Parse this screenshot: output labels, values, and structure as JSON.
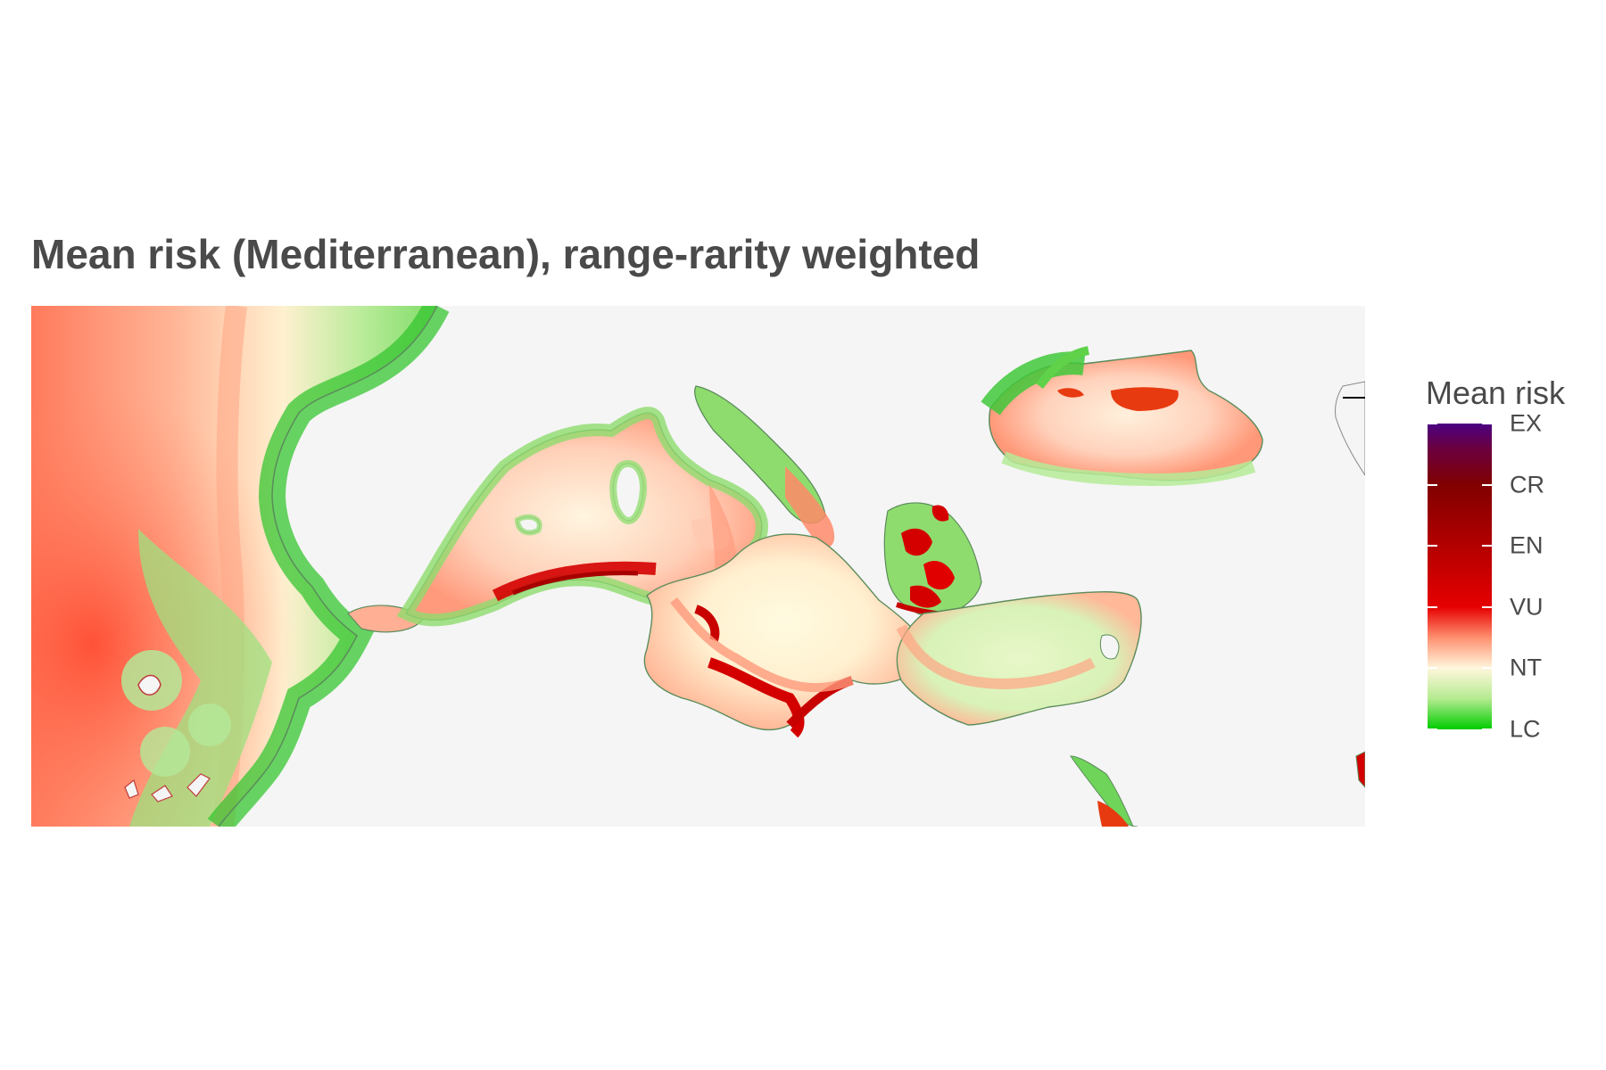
{
  "title": "Mean risk (Mediterranean), range-rarity weighted",
  "legend": {
    "title": "Mean risk",
    "categories": [
      "EX",
      "CR",
      "EN",
      "VU",
      "NT",
      "LC"
    ]
  },
  "colors": {
    "background": "#f5f5f5",
    "land": "#f5f5f5",
    "coast_line": "#5b8c5b",
    "LC": "#00cc00",
    "LC_light": "#c8f0a8",
    "NT": "#fff7dc",
    "NT_to_VU": "#ff9070",
    "VU": "#e60000",
    "EN": "#b30000",
    "CR": "#800000",
    "EX": "#4b0082"
  }
}
